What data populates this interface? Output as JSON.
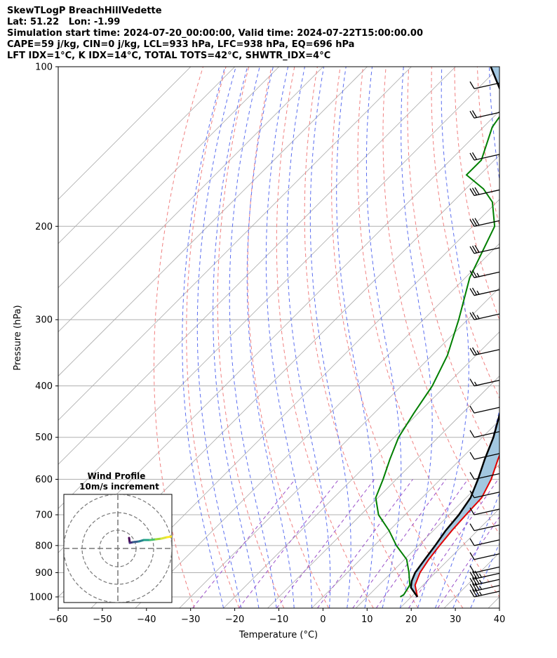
{
  "header": {
    "title": "SkewTLogP BreachHillVedette",
    "latlon": "Lat: 51.22   Lon: -1.99",
    "times": "Simulation start time: 2024-07-20_00:00:00, Valid time: 2024-07-22T15:00:00.00",
    "indices1": "CAPE=59 j/kg, CIN=0 j/kg, LCL=933 hPa, LFC=938 hPa, EQ=696 hPa",
    "indices2": "LFT IDX=1°C, K IDX=14°C, TOTAL TOTS=42°C, SHWTR_IDX=4°C"
  },
  "chart_data": {
    "type": "line",
    "subtype": "skew-T log-p diagram",
    "xlabel": "Temperature (°C)",
    "ylabel": "Pressure (hPa)",
    "xlim": [
      -60,
      40
    ],
    "ylim": [
      1050,
      100
    ],
    "y_scale": "log",
    "grid": true,
    "x_ticks": [
      -60,
      -50,
      -40,
      -30,
      -20,
      -10,
      0,
      10,
      20,
      30,
      40
    ],
    "x_tick_labels": [
      "−60",
      "−50",
      "−40",
      "−30",
      "−20",
      "−10",
      "0",
      "10",
      "20",
      "30",
      "40"
    ],
    "y_ticks": [
      1000,
      900,
      800,
      700,
      600,
      500,
      400,
      300,
      200,
      100
    ],
    "y_tick_labels": [
      "1000",
      "900",
      "800",
      "700",
      "600",
      "500",
      "400",
      "300",
      "200",
      "100"
    ],
    "series": [
      {
        "role": "temperature",
        "color": "#e00000",
        "points": [
          [
            21.4,
            1000
          ],
          [
            18.2,
            950
          ],
          [
            16.5,
            900
          ],
          [
            15.5,
            850
          ],
          [
            14.8,
            800
          ],
          [
            14.2,
            750
          ],
          [
            13.8,
            700
          ],
          [
            13.5,
            650
          ],
          [
            11.5,
            600
          ],
          [
            8.5,
            550
          ],
          [
            5.5,
            500
          ],
          [
            2,
            450
          ],
          [
            -2,
            400
          ],
          [
            -6,
            350
          ],
          [
            -11,
            300
          ],
          [
            -15.5,
            270
          ],
          [
            -20,
            250
          ],
          [
            -24,
            230
          ],
          [
            -27,
            210
          ],
          [
            -29,
            200
          ],
          [
            -33,
            185
          ],
          [
            -38,
            170
          ],
          [
            -43,
            155
          ],
          [
            -47,
            140
          ],
          [
            -51,
            130
          ],
          [
            -54,
            120
          ],
          [
            -57.5,
            110
          ],
          [
            -61,
            100
          ]
        ]
      },
      {
        "role": "dewpoint",
        "color": "#007f00",
        "points": [
          [
            17.5,
            1000
          ],
          [
            17.8,
            990
          ],
          [
            17,
            950
          ],
          [
            14,
            900
          ],
          [
            10.5,
            850
          ],
          [
            5,
            800
          ],
          [
            0,
            750
          ],
          [
            -6,
            700
          ],
          [
            -10.5,
            650
          ],
          [
            -13,
            600
          ],
          [
            -16,
            550
          ],
          [
            -19,
            500
          ],
          [
            -21,
            450
          ],
          [
            -23,
            400
          ],
          [
            -26.5,
            350
          ],
          [
            -32,
            300
          ],
          [
            -39,
            250
          ],
          [
            -45,
            200
          ],
          [
            -51,
            180
          ],
          [
            -56,
            170
          ],
          [
            -63,
            160
          ],
          [
            -63,
            150
          ],
          [
            -68,
            130
          ],
          [
            -72,
            100
          ]
        ]
      },
      {
        "role": "parcel",
        "color": "#000000",
        "points": [
          [
            21.4,
            1000
          ],
          [
            17.8,
            960
          ],
          [
            16.5,
            933
          ],
          [
            15.4,
            900
          ],
          [
            14.6,
            850
          ],
          [
            13.8,
            800
          ],
          [
            12.8,
            750
          ],
          [
            12.2,
            700
          ],
          [
            11,
            650
          ],
          [
            8.5,
            600
          ],
          [
            5.5,
            550
          ],
          [
            2.5,
            500
          ],
          [
            -1.5,
            450
          ],
          [
            -6,
            400
          ],
          [
            -11,
            350
          ],
          [
            -17,
            300
          ],
          [
            -25,
            250
          ],
          [
            -36,
            200
          ],
          [
            -44,
            175
          ],
          [
            -54,
            150
          ],
          [
            -65,
            125
          ],
          [
            -75,
            110
          ],
          [
            -82,
            100
          ]
        ]
      }
    ],
    "shading": [
      {
        "role": "CAPE",
        "color": "#a2c7e0"
      },
      {
        "role": "CIN",
        "color": "#f4a3a3"
      }
    ],
    "background_lines": [
      {
        "role": "isotherms",
        "color": "#aaaaaa"
      },
      {
        "role": "dry adiabats",
        "color": "#f08080"
      },
      {
        "role": "moist adiabats",
        "color": "#5b6ef0"
      },
      {
        "role": "mixing ratio",
        "color": "#9a4fc9"
      }
    ],
    "wind_barbs": [
      {
        "p": 1000,
        "kts": 35
      },
      {
        "p": 975,
        "kts": 35
      },
      {
        "p": 950,
        "kts": 35
      },
      {
        "p": 925,
        "kts": 35
      },
      {
        "p": 900,
        "kts": 10
      },
      {
        "p": 850,
        "kts": 10
      },
      {
        "p": 800,
        "kts": 10
      },
      {
        "p": 750,
        "kts": 10
      },
      {
        "p": 700,
        "kts": 10
      },
      {
        "p": 650,
        "kts": 10
      },
      {
        "p": 600,
        "kts": 10
      },
      {
        "p": 550,
        "kts": 10
      },
      {
        "p": 500,
        "kts": 10
      },
      {
        "p": 450,
        "kts": 10
      },
      {
        "p": 400,
        "kts": 15
      },
      {
        "p": 350,
        "kts": 25
      },
      {
        "p": 300,
        "kts": 25
      },
      {
        "p": 270,
        "kts": 25
      },
      {
        "p": 250,
        "kts": 25
      },
      {
        "p": 225,
        "kts": 30
      },
      {
        "p": 200,
        "kts": 30
      },
      {
        "p": 175,
        "kts": 30
      },
      {
        "p": 150,
        "kts": 20
      },
      {
        "p": 125,
        "kts": 20
      },
      {
        "p": 110,
        "kts": 10
      }
    ],
    "inset": {
      "title": "Wind Profile",
      "subtitle": "10m/s increment",
      "rings": 3,
      "hodograph_color": "#3b6aa8"
    }
  }
}
